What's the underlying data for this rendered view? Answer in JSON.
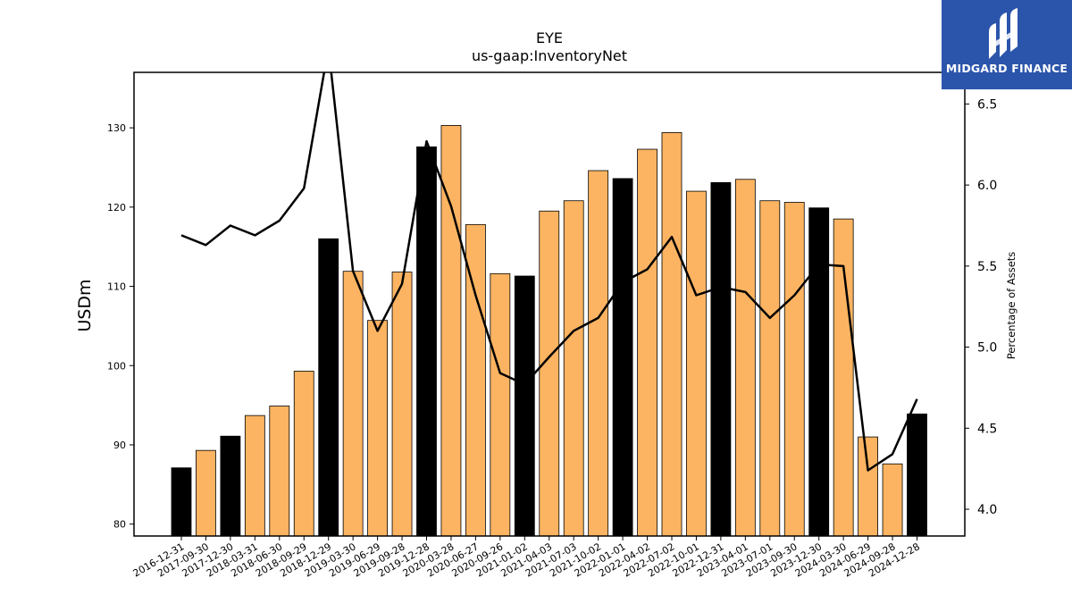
{
  "chart_data": {
    "type": "bar",
    "title": "EYE",
    "subtitle": "us-gaap:InventoryNet",
    "ylabel": "USDm",
    "ylabel_right": "Percentage of Assets",
    "ylim": [
      78.5,
      137
    ],
    "ylim_right": [
      3.835,
      6.695
    ],
    "yticks": [
      80,
      90,
      100,
      110,
      120,
      130
    ],
    "yticks_right": [
      4.0,
      4.5,
      5.0,
      5.5,
      6.0,
      6.5
    ],
    "ytick_labels_right": [
      "4.0",
      "4.5",
      "5.0",
      "5.5",
      "6.0",
      "6.5"
    ],
    "grid": false,
    "categories": [
      "2016-12-31",
      "2017-09-30",
      "2017-12-30",
      "2018-03-31",
      "2018-06-30",
      "2018-09-29",
      "2018-12-29",
      "2019-03-30",
      "2019-06-29",
      "2019-09-28",
      "2019-12-28",
      "2020-03-28",
      "2020-06-27",
      "2020-09-26",
      "2021-01-02",
      "2021-04-03",
      "2021-07-03",
      "2021-10-02",
      "2022-01-01",
      "2022-04-02",
      "2022-07-02",
      "2022-10-01",
      "2022-12-31",
      "2023-04-01",
      "2023-07-01",
      "2023-09-30",
      "2023-12-30",
      "2024-03-30",
      "2024-06-29",
      "2024-09-28",
      "2024-12-28"
    ],
    "bar_values": [
      87.1,
      89.3,
      91.1,
      93.7,
      94.9,
      99.3,
      116.0,
      111.9,
      105.7,
      111.8,
      127.6,
      130.3,
      117.8,
      111.6,
      111.3,
      119.5,
      120.8,
      124.6,
      123.6,
      127.3,
      129.4,
      122.0,
      123.1,
      123.5,
      120.8,
      120.6,
      119.9,
      118.5,
      91.0,
      87.6,
      93.9
    ],
    "bar_colors": [
      "#000000",
      "#fdb462",
      "#000000",
      "#fdb462",
      "#fdb462",
      "#fdb462",
      "#000000",
      "#fdb462",
      "#fdb462",
      "#fdb462",
      "#000000",
      "#fdb462",
      "#fdb462",
      "#fdb462",
      "#000000",
      "#fdb462",
      "#fdb462",
      "#fdb462",
      "#000000",
      "#fdb462",
      "#fdb462",
      "#fdb462",
      "#000000",
      "#fdb462",
      "#fdb462",
      "#fdb462",
      "#000000",
      "#fdb462",
      "#fdb462",
      "#fdb462",
      "#000000"
    ],
    "line_values": [
      5.69,
      5.63,
      5.75,
      5.69,
      5.78,
      5.98,
      6.85,
      5.47,
      5.1,
      5.39,
      6.27,
      5.87,
      5.32,
      4.84,
      4.77,
      4.94,
      5.1,
      5.18,
      5.4,
      5.48,
      5.68,
      5.32,
      5.37,
      5.34,
      5.18,
      5.32,
      5.51,
      5.5,
      4.24,
      4.34,
      4.68
    ],
    "line_color": "#000000"
  },
  "brand": {
    "name": "MIDGARD FINANCE",
    "background": "#2b55ab"
  }
}
